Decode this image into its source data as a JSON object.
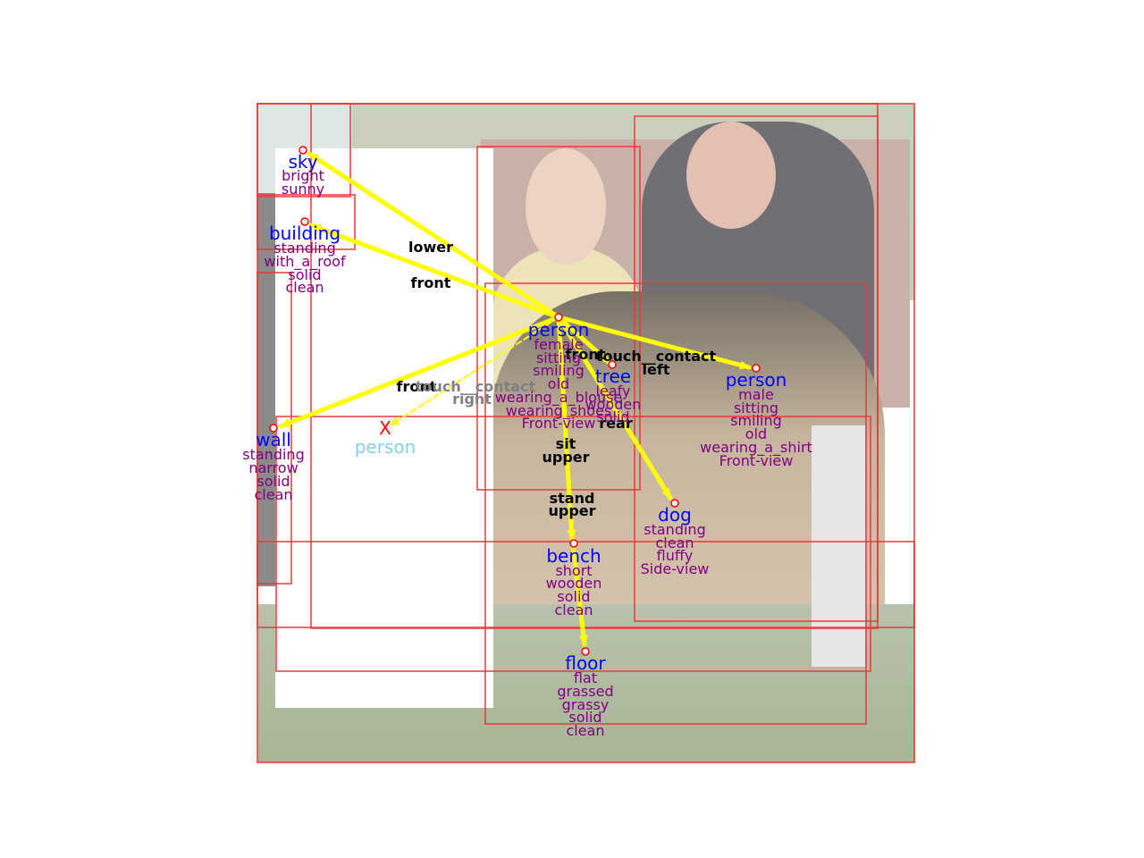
{
  "colors": {
    "box": "#e83a3a",
    "arrow": "#ffff00",
    "node_name": "#0000ff",
    "attribute": "#800080",
    "missing_name": "#87ceeb",
    "missing_mark": "#ff0000",
    "edge_label": "#000000",
    "faint_edge_label": "#808080"
  },
  "photo_description_icons": [
    "sky",
    "brick-wall",
    "hedge",
    "grass",
    "bench",
    "woman",
    "man",
    "afghan-hound"
  ],
  "nodes": [
    {
      "id": "sky",
      "name": "sky",
      "attributes": [
        "bright",
        "sunny"
      ]
    },
    {
      "id": "building",
      "name": "building",
      "attributes": [
        "standing",
        "with_a_roof",
        "solid",
        "clean"
      ]
    },
    {
      "id": "person_woman",
      "name": "person",
      "attributes": [
        "female",
        "sitting",
        "smiling",
        "old",
        "wearing_a_blouse",
        "wearing_shoes",
        "Front-view"
      ]
    },
    {
      "id": "tree",
      "name": "tree",
      "attributes": [
        "leafy",
        "wooden",
        "solid"
      ]
    },
    {
      "id": "person_man",
      "name": "person",
      "attributes": [
        "male",
        "sitting",
        "smiling",
        "old",
        "wearing_a_shirt",
        "Front-view"
      ]
    },
    {
      "id": "wall",
      "name": "wall",
      "attributes": [
        "standing",
        "narrow",
        "solid",
        "clean"
      ]
    },
    {
      "id": "person_missing",
      "name": "person",
      "mark": "X",
      "attributes": []
    },
    {
      "id": "dog",
      "name": "dog",
      "attributes": [
        "standing",
        "clean",
        "fluffy",
        "Side-view"
      ]
    },
    {
      "id": "bench",
      "name": "bench",
      "attributes": [
        "short",
        "wooden",
        "solid",
        "clean"
      ]
    },
    {
      "id": "floor",
      "name": "floor",
      "attributes": [
        "flat",
        "grassed",
        "grassy",
        "solid",
        "clean"
      ]
    }
  ],
  "edges": [
    {
      "from": "person_woman",
      "to": "sky",
      "label": "lower"
    },
    {
      "from": "person_woman",
      "to": "building",
      "label": "front"
    },
    {
      "from": "person_woman",
      "to": "wall",
      "label": "front"
    },
    {
      "from": "person_woman",
      "to": "person_missing",
      "labels": [
        "touch__contact",
        "right"
      ],
      "style": "dashed"
    },
    {
      "from": "person_woman",
      "to": "person_man",
      "labels": [
        "touch__contact",
        "left"
      ]
    },
    {
      "from": "person_woman",
      "to": "tree",
      "label": "front"
    },
    {
      "from": "person_woman",
      "to": "dog",
      "label": "rear"
    },
    {
      "from": "person_woman",
      "to": "bench",
      "labels": [
        "sit",
        "upper"
      ]
    },
    {
      "from": "bench",
      "to": "floor",
      "labels": [
        "stand",
        "upper"
      ]
    }
  ]
}
